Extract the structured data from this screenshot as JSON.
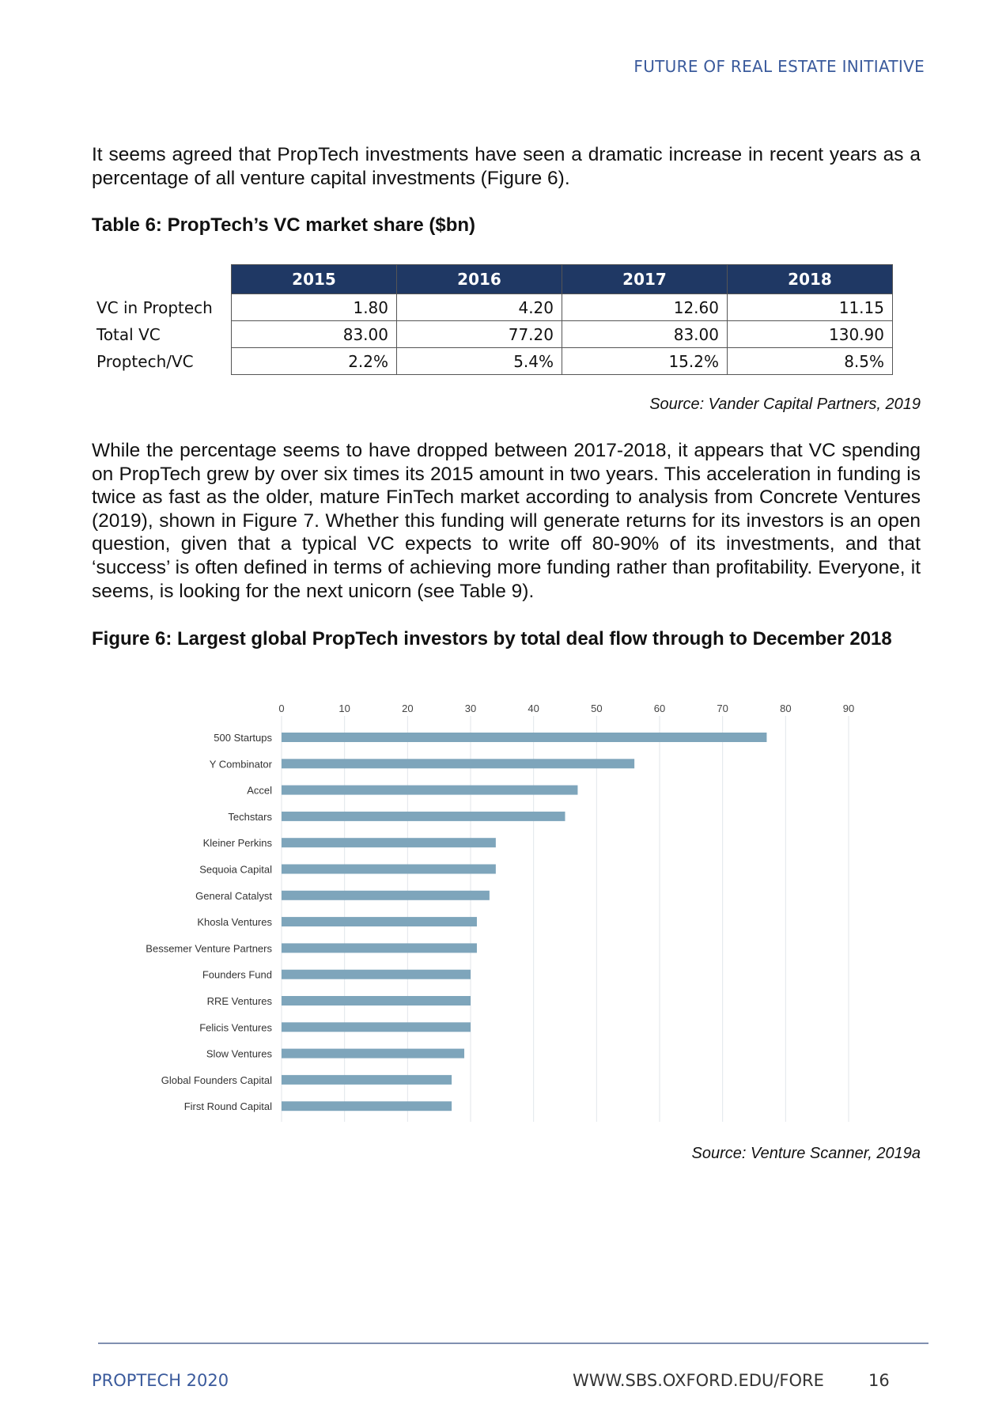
{
  "header": {
    "title": "FUTURE OF REAL ESTATE INITIATIVE"
  },
  "intro": "It seems agreed that PropTech investments have seen a dramatic increase in recent years as a percentage of all venture capital investments (Figure 6).",
  "table": {
    "title": "Table 6: PropTech’s VC market share ($bn)",
    "columns": [
      "2015",
      "2016",
      "2017",
      "2018"
    ],
    "rows": [
      {
        "label": "VC in Proptech",
        "values": [
          "1.80",
          "4.20",
          "12.60",
          "11.15"
        ]
      },
      {
        "label": "Total VC",
        "values": [
          "83.00",
          "77.20",
          "83.00",
          "130.90"
        ]
      },
      {
        "label": "Proptech/VC",
        "values": [
          "2.2%",
          "5.4%",
          "15.2%",
          "8.5%"
        ]
      }
    ],
    "source": "Source: Vander Capital Partners, 2019",
    "header_color": "#1f3864"
  },
  "body": "While the percentage seems to have dropped between 2017-2018, it appears that VC spending on PropTech grew by over six times its 2015 amount in two years. This acceleration in funding is twice as fast as the older, mature FinTech market according to analysis from Concrete Ventures (2019), shown in Figure 7. Whether this funding will generate returns for its investors is an open question, given that a typical VC expects to write off 80-90% of its investments, and that ‘success’ is often defined in terms of achieving more funding rather than profitability. Everyone, it seems, is looking for the next unicorn (see Table 9).",
  "figure": {
    "title": "Figure 6: Largest global PropTech investors by total deal flow through to December 2018",
    "source": "Source: Venture Scanner, 2019a"
  },
  "chart_data": {
    "type": "bar",
    "orientation": "horizontal",
    "categories": [
      "500 Startups",
      "Y Combinator",
      "Accel",
      "Techstars",
      "Kleiner Perkins",
      "Sequoia Capital",
      "General Catalyst",
      "Khosla Ventures",
      "Bessemer Venture Partners",
      "Founders Fund",
      "RRE Ventures",
      "Felicis Ventures",
      "Slow Ventures",
      "Global Founders Capital",
      "First Round Capital"
    ],
    "values": [
      77,
      56,
      47,
      45,
      34,
      34,
      33,
      31,
      31,
      30,
      30,
      30,
      29,
      27,
      27
    ],
    "xlim": [
      0,
      90
    ],
    "xticks": [
      "0",
      "10",
      "20",
      "30",
      "40",
      "50",
      "60",
      "70",
      "80",
      "90"
    ],
    "axis_position": "top",
    "grid": true,
    "bar_color": "#7ea5bb"
  },
  "footer": {
    "left": "PROPTECH 2020",
    "url": "WWW.SBS.OXFORD.EDU/FORE",
    "page": "16"
  }
}
